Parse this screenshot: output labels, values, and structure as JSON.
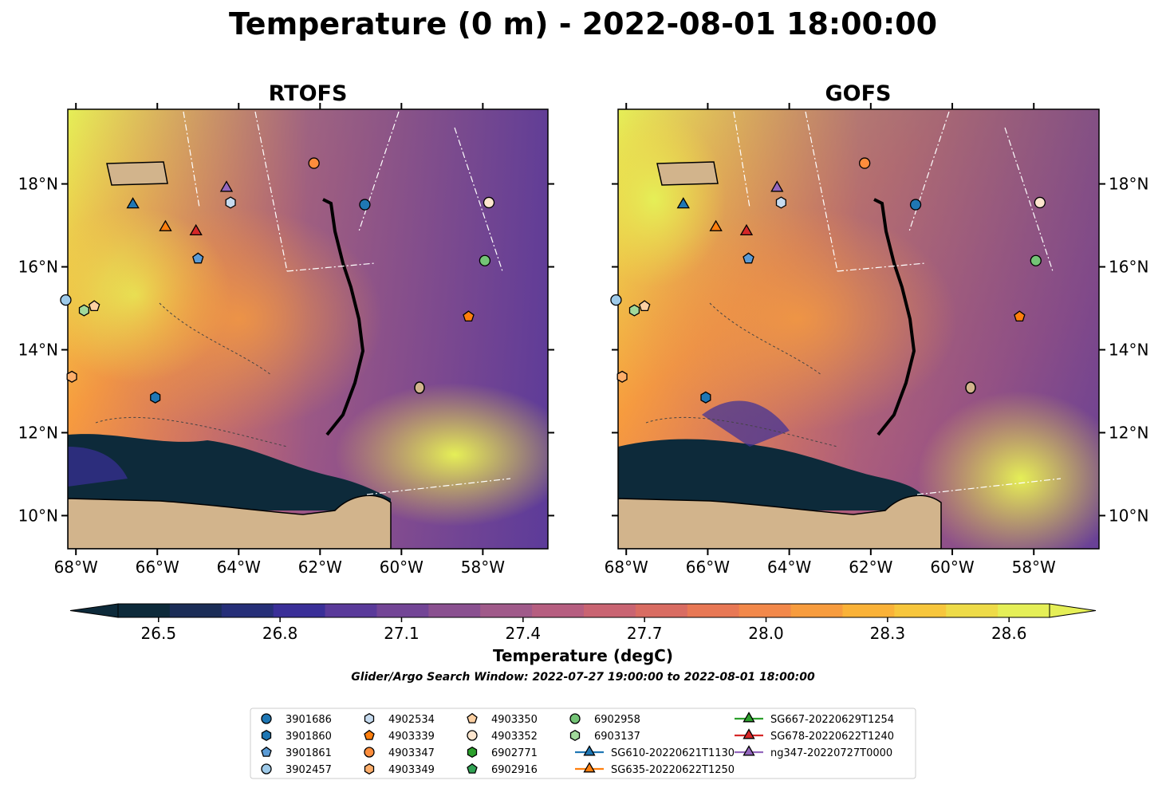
{
  "title": "Temperature (0 m) - 2022-08-01 18:00:00",
  "panels": [
    {
      "id": "rtofs",
      "title": "RTOFS"
    },
    {
      "id": "gofs",
      "title": "GOFS"
    }
  ],
  "map_extent": {
    "lon_min": -68.2,
    "lon_max": -56.4,
    "lat_min": 9.2,
    "lat_max": 19.8
  },
  "lon_ticks": [
    {
      "value": -68,
      "label": "68°W"
    },
    {
      "value": -66,
      "label": "66°W"
    },
    {
      "value": -64,
      "label": "64°W"
    },
    {
      "value": -62,
      "label": "62°W"
    },
    {
      "value": -60,
      "label": "60°W"
    },
    {
      "value": -58,
      "label": "58°W"
    }
  ],
  "lat_ticks": [
    {
      "value": 10,
      "label": "10°N"
    },
    {
      "value": 12,
      "label": "12°N"
    },
    {
      "value": 14,
      "label": "14°N"
    },
    {
      "value": 16,
      "label": "16°N"
    },
    {
      "value": 18,
      "label": "18°N"
    }
  ],
  "colorbar": {
    "label": "Temperature (degC)",
    "vmin": 26.4,
    "vmax": 28.7,
    "tick_values": [
      26.5,
      26.8,
      27.1,
      27.4,
      27.7,
      28.0,
      28.3,
      28.6
    ],
    "tick_labels": [
      "26.5",
      "26.8",
      "27.1",
      "27.4",
      "27.7",
      "28.0",
      "28.3",
      "28.6"
    ],
    "colors": [
      "#0d2a3a",
      "#1b2d57",
      "#262f78",
      "#3a2f98",
      "#5a3a9a",
      "#734596",
      "#8a5090",
      "#a05a8a",
      "#b65e80",
      "#c96472",
      "#d96c62",
      "#e87855",
      "#f2884a",
      "#f79c3e",
      "#fab238",
      "#f7c63c",
      "#eedb48",
      "#e5ef57"
    ]
  },
  "search_window": "Glider/Argo Search Window: 2022-07-27 19:00:00 to 2022-08-01 18:00:00",
  "legend": [
    {
      "label": "3901686",
      "marker": "circle",
      "color": "#1f77b4"
    },
    {
      "label": "3901860",
      "marker": "hexagon",
      "color": "#1f77b4"
    },
    {
      "label": "3901861",
      "marker": "pentagon",
      "color": "#5b9bd5"
    },
    {
      "label": "3902457",
      "marker": "circle",
      "color": "#9ecae9"
    },
    {
      "label": "4902534",
      "marker": "hexagon",
      "color": "#c6dbef"
    },
    {
      "label": "4903339",
      "marker": "pentagon",
      "color": "#ff7f0e"
    },
    {
      "label": "4903347",
      "marker": "circle",
      "color": "#fd8d3c"
    },
    {
      "label": "4903349",
      "marker": "hexagon",
      "color": "#fdae6b"
    },
    {
      "label": "4903350",
      "marker": "pentagon",
      "color": "#fdd0a2"
    },
    {
      "label": "4903352",
      "marker": "circle",
      "color": "#fee6ce"
    },
    {
      "label": "6902771",
      "marker": "hexagon",
      "color": "#2ca02c"
    },
    {
      "label": "6902916",
      "marker": "pentagon",
      "color": "#31a354"
    },
    {
      "label": "6902958",
      "marker": "circle",
      "color": "#74c476"
    },
    {
      "label": "6903137",
      "marker": "hexagon",
      "color": "#a1d99b"
    },
    {
      "label": "SG610-20220621T1130",
      "marker": "triangle",
      "color": "#1f77b4",
      "line": true
    },
    {
      "label": "SG635-20220622T1250",
      "marker": "triangle",
      "color": "#ff7f0e",
      "line": true
    },
    {
      "label": "SG667-20220629T1254",
      "marker": "triangle",
      "color": "#2ca02c",
      "line": true
    },
    {
      "label": "SG678-20220622T1240",
      "marker": "triangle",
      "color": "#d62728",
      "line": true
    },
    {
      "label": "ng347-20220727T0000",
      "marker": "triangle",
      "color": "#9467bd",
      "line": true
    }
  ],
  "observations": [
    {
      "label": "3901686",
      "lon": -60.9,
      "lat": 17.5
    },
    {
      "label": "3901860",
      "lon": -66.05,
      "lat": 12.85
    },
    {
      "label": "3901861",
      "lon": -65.0,
      "lat": 16.2
    },
    {
      "label": "3902457",
      "lon": -68.25,
      "lat": 15.2
    },
    {
      "label": "4902534",
      "lon": -64.2,
      "lat": 17.55
    },
    {
      "label": "4903339",
      "lon": -58.35,
      "lat": 14.8
    },
    {
      "label": "4903347",
      "lon": -62.15,
      "lat": 18.5
    },
    {
      "label": "4903349",
      "lon": -68.1,
      "lat": 13.35
    },
    {
      "label": "4903350",
      "lon": -67.55,
      "lat": 15.05
    },
    {
      "label": "4903352",
      "lon": -57.85,
      "lat": 17.55
    },
    {
      "label": "6902958",
      "lon": -57.95,
      "lat": 16.15
    },
    {
      "label": "6903137",
      "lon": -67.8,
      "lat": 14.95
    },
    {
      "label": "SG610-20220621T1130",
      "lon": -66.6,
      "lat": 17.5
    },
    {
      "label": "SG635-20220622T1250",
      "lon": -65.8,
      "lat": 16.95
    },
    {
      "label": "SG678-20220622T1240",
      "lon": -65.05,
      "lat": 16.85
    },
    {
      "label": "ng347-20220727T0000",
      "lon": -64.3,
      "lat": 17.9
    }
  ]
}
